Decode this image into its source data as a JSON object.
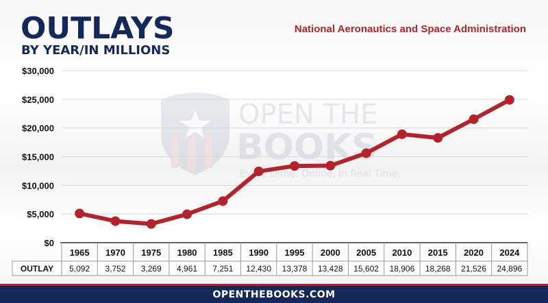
{
  "header": {
    "title": "OUTLAYS",
    "subtitle": "BY YEAR/IN MILLIONS",
    "agency": "National Aeronautics and Space Administration"
  },
  "watermark": {
    "line1": "OPEN THE",
    "line2": "BOOKS",
    "tagline": "Every Dime. Online. In Real Time."
  },
  "footer": {
    "site": "OPENTHEBOOKS.COM"
  },
  "colors": {
    "navy": "#14285a",
    "red": "#b4232b",
    "line": "#b4232b"
  },
  "chart_data": {
    "type": "line",
    "categories": [
      "1965",
      "1970",
      "1975",
      "1980",
      "1985",
      "1990",
      "1995",
      "2000",
      "2005",
      "2010",
      "2015",
      "2020",
      "2024"
    ],
    "values": [
      5092,
      3752,
      3269,
      4961,
      7251,
      12430,
      13378,
      13428,
      15602,
      18906,
      18268,
      21526,
      24896
    ],
    "value_labels": [
      "5,092",
      "3,752",
      "3,269",
      "4,961",
      "7,251",
      "12,430",
      "13,378",
      "13,428",
      "15,602",
      "18,906",
      "18,268",
      "21,526",
      "24,896"
    ],
    "yticks": [
      "$0",
      "$5,000",
      "$10,000",
      "$15,000",
      "$20,000",
      "$25,000",
      "$30,000"
    ],
    "table_row_label": "OUTLAY",
    "ylim": [
      0,
      30000
    ],
    "grid": true
  }
}
